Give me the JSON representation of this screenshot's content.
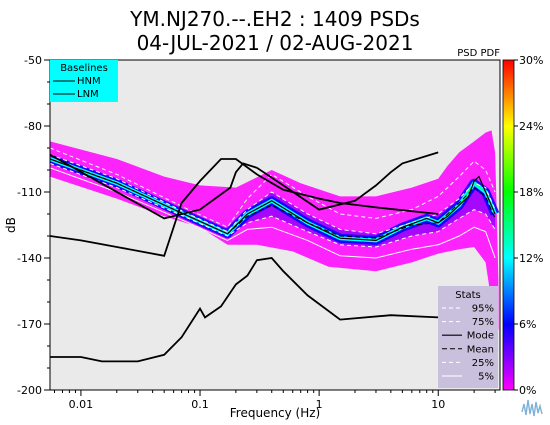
{
  "header": {
    "title_line1": "YM.NJ270.--.EH2 : 1409 PSDs",
    "title_line2": "04-JUL-2021 / 02-AUG-2021"
  },
  "colors": {
    "background": "#ffffff",
    "plot_background": "#eaeaea",
    "baselines_box": "#00ffff",
    "stats_box": "#c8c0dc",
    "hnm_line": "#000000",
    "lnm_line": "#000000",
    "colorbar_stops": [
      "#ff00ff",
      "#0000ff",
      "#00ffff",
      "#00ff00",
      "#ffff00",
      "#ff0000"
    ]
  },
  "chart_data": {
    "type": "heatmap",
    "subtype": "probabilistic power spectral density",
    "title": "YM.NJ270.--.EH2 : 1409 PSDs",
    "subtitle": "04-JUL-2021 / 02-AUG-2021",
    "xlabel": "Frequency (Hz)",
    "ylabel": "dB",
    "x_scale": "log",
    "xlim": [
      0.0055,
      33
    ],
    "ylim": [
      -200,
      -50
    ],
    "x_ticks": [
      0.01,
      0.1,
      1,
      10
    ],
    "x_tick_labels": [
      "0.01",
      "0.1",
      "1",
      "10"
    ],
    "y_ticks": [
      -50,
      -80,
      -110,
      -140,
      -170,
      -200
    ],
    "y_tick_labels": [
      "-50",
      "-80",
      "-110",
      "-140",
      "-170",
      "-200"
    ],
    "grid": false,
    "colorbar": {
      "label": "PSD PDF",
      "range": [
        0,
        30
      ],
      "unit": "%",
      "tick_labels": [
        "0%",
        "6%",
        "12%",
        "18%",
        "24%",
        "30%"
      ]
    },
    "baselines": {
      "title": "Baselines",
      "series": [
        {
          "name": "HNM",
          "style": "solid",
          "points": [
            [
              0.0055,
              -93
            ],
            [
              0.05,
              -122
            ],
            [
              0.1,
              -118
            ],
            [
              0.18,
              -108
            ],
            [
              0.2,
              -101
            ],
            [
              0.23,
              -97
            ],
            [
              0.3,
              -99
            ],
            [
              0.5,
              -107
            ],
            [
              1,
              -118
            ],
            [
              2,
              -114
            ],
            [
              3,
              -107
            ],
            [
              4,
              -101
            ],
            [
              5,
              -97
            ],
            [
              10,
              -92
            ]
          ]
        },
        {
          "name": "LNM",
          "style": "solid",
          "points": [
            [
              0.0055,
              -130
            ],
            [
              0.01,
              -132
            ],
            [
              0.02,
              -135
            ],
            [
              0.05,
              -139
            ],
            [
              0.07,
              -115
            ],
            [
              0.1,
              -105
            ],
            [
              0.15,
              -95
            ],
            [
              0.2,
              -95
            ],
            [
              0.3,
              -102
            ],
            [
              0.5,
              -109
            ],
            [
              1,
              -113
            ],
            [
              1.5,
              -115
            ],
            [
              3,
              -117
            ],
            [
              10,
              -120
            ]
          ]
        }
      ],
      "lower_noise_curve": {
        "points": [
          [
            0.0055,
            -185
          ],
          [
            0.01,
            -185
          ],
          [
            0.015,
            -187
          ],
          [
            0.03,
            -187
          ],
          [
            0.05,
            -184
          ],
          [
            0.07,
            -176
          ],
          [
            0.1,
            -163
          ],
          [
            0.11,
            -167
          ],
          [
            0.15,
            -162
          ],
          [
            0.2,
            -152
          ],
          [
            0.25,
            -148
          ],
          [
            0.3,
            -141
          ],
          [
            0.4,
            -140
          ],
          [
            0.5,
            -146
          ],
          [
            0.8,
            -157
          ],
          [
            1.5,
            -168
          ],
          [
            4,
            -166
          ],
          [
            10,
            -167
          ]
        ]
      }
    },
    "stats": {
      "title": "Stats",
      "series": [
        {
          "name": "95%",
          "style": "dashed-white",
          "points": [
            [
              0.0055,
              -90
            ],
            [
              0.02,
              -102
            ],
            [
              0.08,
              -118
            ],
            [
              0.17,
              -126
            ],
            [
              0.25,
              -113
            ],
            [
              0.4,
              -102
            ],
            [
              0.8,
              -112
            ],
            [
              1.5,
              -120
            ],
            [
              3,
              -122
            ],
            [
              6,
              -118
            ],
            [
              10,
              -112
            ],
            [
              15,
              -103
            ],
            [
              20,
              -96
            ],
            [
              25,
              -100
            ],
            [
              30,
              -110
            ]
          ]
        },
        {
          "name": "75%",
          "style": "dashed-white",
          "points": [
            [
              0.0055,
              -93
            ],
            [
              0.02,
              -104
            ],
            [
              0.08,
              -120
            ],
            [
              0.17,
              -128
            ],
            [
              0.25,
              -118
            ],
            [
              0.4,
              -110
            ],
            [
              0.8,
              -120
            ],
            [
              1.5,
              -127
            ],
            [
              3,
              -129
            ],
            [
              6,
              -124
            ],
            [
              10,
              -120
            ],
            [
              15,
              -113
            ],
            [
              20,
              -106
            ],
            [
              25,
              -108
            ],
            [
              30,
              -118
            ]
          ]
        },
        {
          "name": "Mode",
          "style": "solid-black",
          "points": [
            [
              0.0055,
              -95
            ],
            [
              0.02,
              -106
            ],
            [
              0.08,
              -121
            ],
            [
              0.17,
              -129
            ],
            [
              0.25,
              -120
            ],
            [
              0.4,
              -114
            ],
            [
              0.8,
              -124
            ],
            [
              1.5,
              -131
            ],
            [
              3,
              -132
            ],
            [
              5,
              -126
            ],
            [
              8,
              -122
            ],
            [
              10,
              -124
            ],
            [
              12,
              -121
            ],
            [
              15,
              -116
            ],
            [
              18,
              -112
            ],
            [
              20,
              -105
            ],
            [
              22,
              -103
            ],
            [
              25,
              -110
            ],
            [
              30,
              -120
            ]
          ]
        },
        {
          "name": "Mean",
          "style": "dashed-black",
          "points": [
            [
              0.0055,
              -95
            ],
            [
              0.02,
              -106
            ],
            [
              0.08,
              -121
            ],
            [
              0.17,
              -129
            ],
            [
              0.25,
              -121
            ],
            [
              0.4,
              -116
            ],
            [
              0.8,
              -124
            ],
            [
              1.5,
              -130
            ],
            [
              3,
              -131
            ],
            [
              6,
              -125
            ],
            [
              10,
              -124
            ],
            [
              15,
              -115
            ],
            [
              20,
              -108
            ],
            [
              25,
              -112
            ],
            [
              30,
              -122
            ]
          ]
        },
        {
          "name": "25%",
          "style": "dashed-white",
          "points": [
            [
              0.0055,
              -97
            ],
            [
              0.02,
              -108
            ],
            [
              0.08,
              -122
            ],
            [
              0.17,
              -130
            ],
            [
              0.25,
              -124
            ],
            [
              0.4,
              -121
            ],
            [
              0.8,
              -128
            ],
            [
              1.5,
              -134
            ],
            [
              3,
              -135
            ],
            [
              6,
              -130
            ],
            [
              10,
              -128
            ],
            [
              15,
              -122
            ],
            [
              20,
              -118
            ],
            [
              25,
              -120
            ],
            [
              30,
              -127
            ]
          ]
        },
        {
          "name": "5%",
          "style": "solid-white",
          "points": [
            [
              0.0055,
              -99
            ],
            [
              0.02,
              -110
            ],
            [
              0.08,
              -124
            ],
            [
              0.17,
              -132
            ],
            [
              0.25,
              -127
            ],
            [
              0.4,
              -126
            ],
            [
              0.8,
              -132
            ],
            [
              1.5,
              -139
            ],
            [
              3,
              -140
            ],
            [
              6,
              -136
            ],
            [
              10,
              -134
            ],
            [
              15,
              -130
            ],
            [
              20,
              -126
            ],
            [
              25,
              -128
            ],
            [
              30,
              -140
            ]
          ]
        }
      ]
    },
    "pdf_upper_envelope": [
      [
        0.0055,
        -87
      ],
      [
        0.02,
        -95
      ],
      [
        0.05,
        -103
      ],
      [
        0.1,
        -107
      ],
      [
        0.2,
        -108
      ],
      [
        0.4,
        -100
      ],
      [
        0.7,
        -106
      ],
      [
        1.5,
        -112
      ],
      [
        3,
        -112
      ],
      [
        6,
        -108
      ],
      [
        10,
        -104
      ],
      [
        12,
        -98
      ],
      [
        15,
        -92
      ],
      [
        20,
        -87
      ],
      [
        25,
        -83
      ],
      [
        28,
        -82
      ],
      [
        30,
        -92
      ],
      [
        31,
        -120
      ],
      [
        32,
        -150
      ]
    ],
    "pdf_lower_envelope": [
      [
        0.0055,
        -103
      ],
      [
        0.02,
        -113
      ],
      [
        0.05,
        -121
      ],
      [
        0.1,
        -126
      ],
      [
        0.17,
        -134
      ],
      [
        0.3,
        -134
      ],
      [
        0.6,
        -137
      ],
      [
        1.2,
        -144
      ],
      [
        3,
        -146
      ],
      [
        6,
        -142
      ],
      [
        10,
        -138
      ],
      [
        15,
        -136
      ],
      [
        20,
        -135
      ],
      [
        25,
        -142
      ],
      [
        28,
        -160
      ],
      [
        30,
        -180
      ],
      [
        32,
        -172
      ]
    ],
    "pdf_core_line": [
      [
        0.0055,
        -95
      ],
      [
        0.02,
        -106
      ],
      [
        0.08,
        -121
      ],
      [
        0.17,
        -129
      ],
      [
        0.25,
        -120
      ],
      [
        0.4,
        -114
      ],
      [
        0.8,
        -124
      ],
      [
        1.5,
        -131
      ],
      [
        3,
        -132
      ],
      [
        5,
        -126
      ],
      [
        8,
        -122
      ],
      [
        10,
        -124
      ],
      [
        15,
        -116
      ],
      [
        20,
        -106
      ],
      [
        25,
        -110
      ],
      [
        30,
        -120
      ]
    ]
  }
}
